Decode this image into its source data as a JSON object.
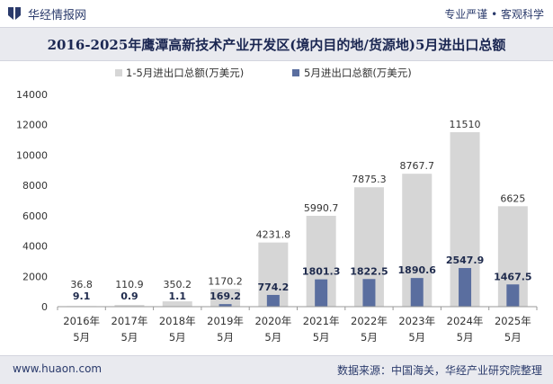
{
  "header": {
    "brand": "华经情报网",
    "slogan": "专业严谨 • 客观科学"
  },
  "footer": {
    "url": "www.huaon.com",
    "source": "数据来源：中国海关，华经产业研究院整理"
  },
  "colors": {
    "series1": "#d6d6d6",
    "series2": "#5a6e9f",
    "brand": "#2a3a6b"
  },
  "chart_data": {
    "type": "bar",
    "title": "2016-2025年鹰潭高新技术产业开发区(境内目的地/货源地)5月进出口总额",
    "categories": [
      [
        "2016年",
        "5月"
      ],
      [
        "2017年",
        "5月"
      ],
      [
        "2018年",
        "5月"
      ],
      [
        "2019年",
        "5月"
      ],
      [
        "2020年",
        "5月"
      ],
      [
        "2021年",
        "5月"
      ],
      [
        "2022年",
        "5月"
      ],
      [
        "2023年",
        "5月"
      ],
      [
        "2024年",
        "5月"
      ],
      [
        "2025年",
        "5月"
      ]
    ],
    "series": [
      {
        "name": "1-5月进出口总额(万美元)",
        "values": [
          36.8,
          110.9,
          350.2,
          1170.2,
          4231.8,
          5990.7,
          7875.3,
          8767.7,
          11510,
          6625
        ],
        "labels": [
          "36.8",
          "110.9",
          "350.2",
          "1170.2",
          "4231.8",
          "5990.7",
          "7875.3",
          "8767.7",
          "11510",
          "6625"
        ]
      },
      {
        "name": "5月进出口总额(万美元)",
        "values": [
          9.1,
          0.9,
          1.1,
          169.2,
          774.2,
          1801.3,
          1822.5,
          1890.6,
          2547.9,
          1467.5
        ],
        "labels": [
          "9.1",
          "0.9",
          "1.1",
          "169.2",
          "774.2",
          "1801.3",
          "1822.5",
          "1890.6",
          "2547.9",
          "1467.5"
        ]
      }
    ],
    "yticks": [
      "0",
      "2000",
      "4000",
      "6000",
      "8000",
      "10000",
      "12000",
      "14000"
    ],
    "ylim": [
      0,
      14000
    ],
    "legend_position": "top",
    "grid": false
  }
}
